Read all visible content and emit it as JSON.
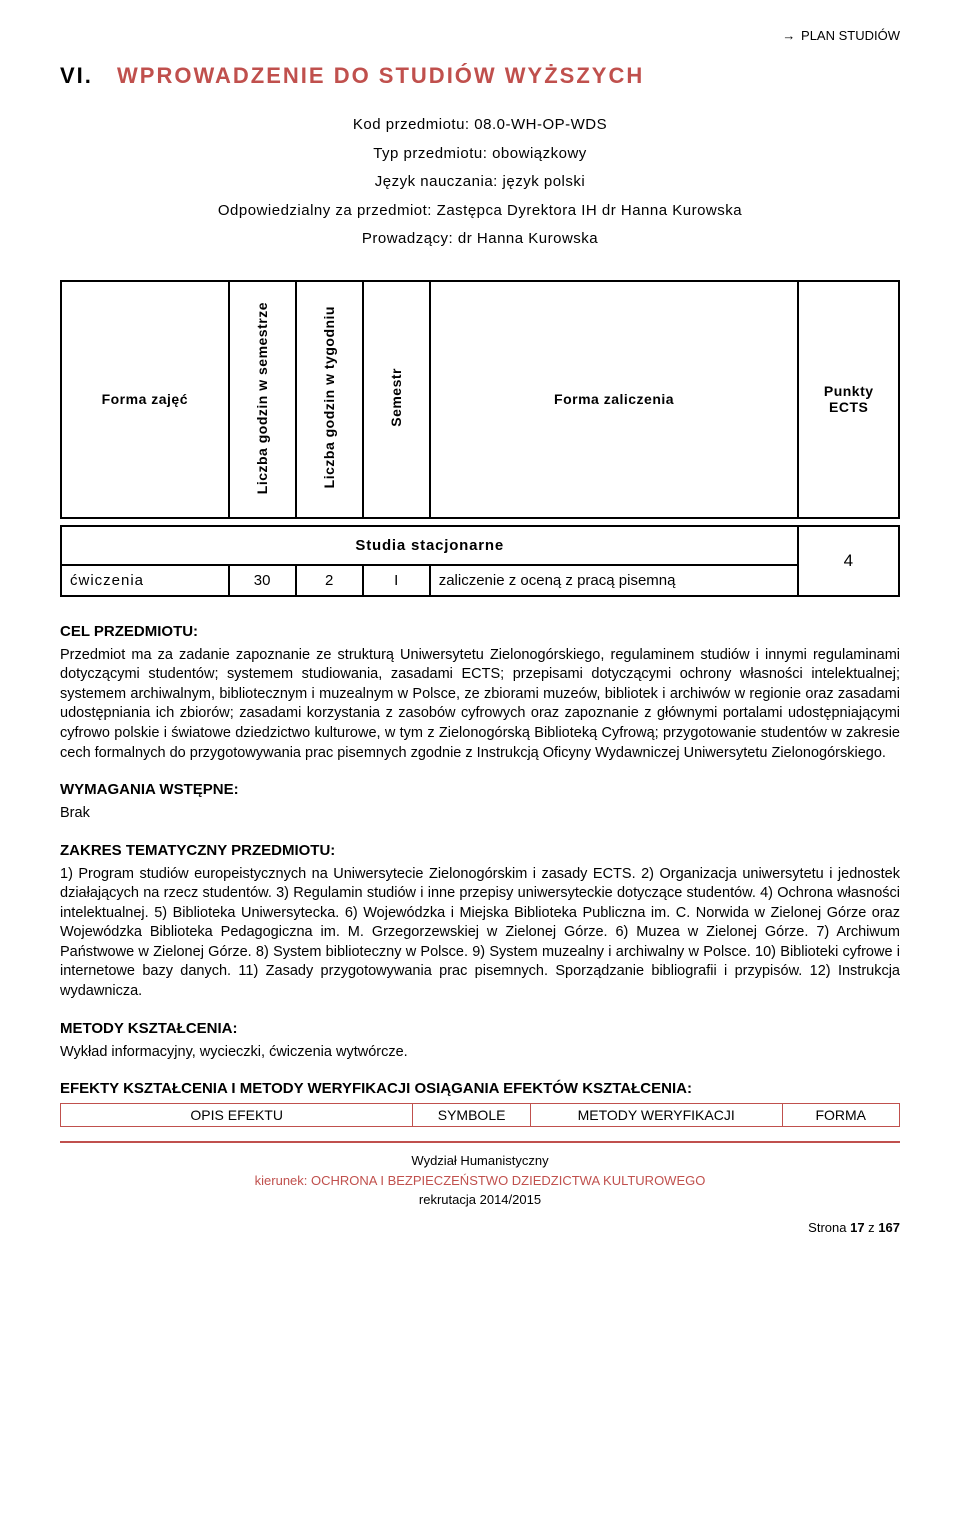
{
  "topLink": {
    "arrow": "→",
    "text": "PLAN STUDIÓW"
  },
  "title": {
    "roman": "VI.",
    "text": "WPROWADZENIE DO STUDIÓW WYŻSZYCH"
  },
  "meta": {
    "kod_label": "Kod przedmiotu:",
    "kod_value": "08.0-WH-OP-WDS",
    "typ_label": "Typ przedmiotu:",
    "typ_value": "obowiązkowy",
    "jezyk_label": "Język nauczania:",
    "jezyk_value": "język polski",
    "odp_label": "Odpowiedzialny za przedmiot:",
    "odp_value": "Zastępca Dyrektora IH dr Hanna Kurowska",
    "prow_label": "Prowadzący:",
    "prow_value": "dr Hanna Kurowska"
  },
  "headerTable": {
    "col1": "Forma zajęć",
    "col2": "Liczba godzin w semestrze",
    "col3": "Liczba godzin w tygodniu",
    "col4": "Semestr",
    "col5": "Forma zaliczenia",
    "col6": "Punkty ECTS",
    "col_widths": [
      "20%",
      "8%",
      "8%",
      "8%",
      "44%",
      "12%"
    ]
  },
  "dataTable": {
    "studia_label": "Studia stacjonarne",
    "ects": "4",
    "row": {
      "forma": "ćwiczenia",
      "godz_sem": "30",
      "godz_tyg": "2",
      "semestr": "I",
      "zaliczenie": "zaliczenie z oceną z pracą pisemną"
    }
  },
  "sections": {
    "cel_h": "CEL PRZEDMIOTU:",
    "cel_t": "Przedmiot ma za zadanie zapoznanie ze strukturą Uniwersytetu Zielonogórskiego, regulaminem studiów i innymi regulaminami dotyczącymi studentów; systemem studiowania, zasadami ECTS; przepisami dotyczącymi ochrony własności intelektualnej; systemem archiwalnym, bibliotecznym i muzealnym w Polsce, ze zbiorami muzeów, bibliotek i archiwów w regionie oraz zasadami udostępniania ich zbiorów; zasadami korzystania z zasobów cyfrowych oraz zapoznanie z głównymi portalami udostępniającymi cyfrowo polskie i światowe dziedzictwo kulturowe, w tym z Zielonogórską Biblioteką Cyfrową; przygotowanie studentów w zakresie cech formalnych do przygotowywania prac pisemnych zgodnie z Instrukcją Oficyny Wydawniczej Uniwersytetu Zielonogórskiego.",
    "wym_h": "WYMAGANIA WSTĘPNE:",
    "wym_t": "Brak",
    "zakres_h": "ZAKRES TEMATYCZNY PRZEDMIOTU:",
    "zakres_t": "1) Program studiów europeistycznych na Uniwersytecie Zielonogórskim i zasady ECTS. 2) Organizacja uniwersytetu i jednostek działających na rzecz studentów. 3) Regulamin studiów i inne przepisy uniwersyteckie dotyczące studentów. 4) Ochrona własności intelektualnej. 5) Biblioteka Uniwersytecka. 6) Wojewódzka i Miejska Biblioteka Publiczna im. C. Norwida w Zielonej Górze oraz Wojewódzka Biblioteka Pedagogiczna im. M. Grzegorzewskiej w Zielonej Górze. 6) Muzea w Zielonej Górze. 7) Archiwum Państwowe w Zielonej Górze. 8) System biblioteczny w Polsce. 9) System muzealny i archiwalny w Polsce. 10) Biblioteki cyfrowe i internetowe bazy danych. 11) Zasady przygotowywania prac pisemnych. Sporządzanie bibliografii i przypisów. 12) Instrukcja wydawnicza.",
    "metody_h": "METODY KSZTAŁCENIA:",
    "metody_t": "Wykład informacyjny, wycieczki, ćwiczenia wytwórcze.",
    "efekty_h": "EFEKTY KSZTAŁCENIA I METODY WERYFIKACJI OSIĄGANIA EFEKTÓW KSZTAŁCENIA:"
  },
  "efektyTable": {
    "c1": "OPIS EFEKTU",
    "c2": "SYMBOLE",
    "c3": "METODY WERYFIKACJI",
    "c4": "FORMA",
    "col_widths": [
      "42%",
      "14%",
      "30%",
      "14%"
    ]
  },
  "footer": {
    "line1": "Wydział Humanistyczny",
    "line2": "kierunek: OCHRONA I BEZPIECZEŃSTWO DZIEDZICTWA KULTUROWEGO",
    "line3": "rekrutacja 2014/2015",
    "page_pre": "Strona ",
    "page_cur": "17",
    "page_mid": " z ",
    "page_tot": "167"
  },
  "colors": {
    "accent": "#c0504d",
    "text": "#000000",
    "border": "#000000"
  }
}
